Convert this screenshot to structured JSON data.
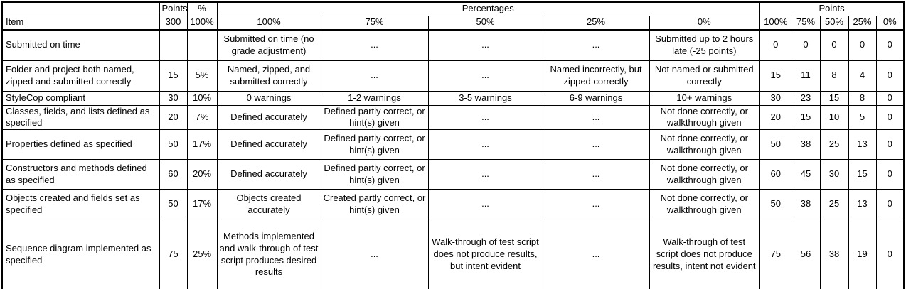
{
  "table": {
    "header_row1": {
      "corner": "",
      "points": "Points",
      "percent": "%",
      "percentages_group": "Percentages",
      "points_group": "Points"
    },
    "header_row2": {
      "item": "Item",
      "points_total": "300",
      "percent_total": "100%",
      "pct_levels": [
        "100%",
        "75%",
        "50%",
        "25%",
        "0%"
      ],
      "pts_levels": [
        "100%",
        "75%",
        "50%",
        "25%",
        "0%"
      ]
    },
    "rows": [
      {
        "item": "Submitted on time",
        "points": "",
        "pct": "",
        "p100": "Submitted on time (no grade adjustment)",
        "p75": "...",
        "p50": "...",
        "p25": "...",
        "p0": "Submitted up to 2 hours late (-25 points)",
        "pts100": "0",
        "pts75": "0",
        "pts50": "0",
        "pts25": "0",
        "pts0": "0"
      },
      {
        "item": "Folder and project both named, zipped and submitted correctly",
        "points": "15",
        "pct": "5%",
        "p100": "Named, zipped, and submitted correctly",
        "p75": "...",
        "p50": "...",
        "p25": "Named incorrectly, but zipped correctly",
        "p0": "Not named or submitted correctly",
        "pts100": "15",
        "pts75": "11",
        "pts50": "8",
        "pts25": "4",
        "pts0": "0"
      },
      {
        "item": "StyleCop compliant",
        "points": "30",
        "pct": "10%",
        "p100": "0 warnings",
        "p75": "1-2 warnings",
        "p50": "3-5 warnings",
        "p25": "6-9 warnings",
        "p0": "10+ warnings",
        "pts100": "30",
        "pts75": "23",
        "pts50": "15",
        "pts25": "8",
        "pts0": "0"
      },
      {
        "item": "Classes, fields, and lists defined as specified",
        "points": "20",
        "pct": "7%",
        "p100": "Defined accurately",
        "p75": "Defined partly correct, or hint(s) given",
        "p50": "...",
        "p25": "...",
        "p0": "Not done correctly, or walkthrough given",
        "pts100": "20",
        "pts75": "15",
        "pts50": "10",
        "pts25": "5",
        "pts0": "0"
      },
      {
        "item": "Properties defined as specified",
        "points": "50",
        "pct": "17%",
        "p100": "Defined accurately",
        "p75": "Defined partly correct, or hint(s) given",
        "p50": "...",
        "p25": "...",
        "p0": "Not done correctly, or walkthrough given",
        "pts100": "50",
        "pts75": "38",
        "pts50": "25",
        "pts25": "13",
        "pts0": "0"
      },
      {
        "item": "Constructors and methods defined as specified",
        "points": "60",
        "pct": "20%",
        "p100": "Defined accurately",
        "p75": "Defined partly correct, or hint(s) given",
        "p50": "...",
        "p25": "...",
        "p0": "Not done correctly, or walkthrough given",
        "pts100": "60",
        "pts75": "45",
        "pts50": "30",
        "pts25": "15",
        "pts0": "0"
      },
      {
        "item": "Objects created and fields set as specified",
        "points": "50",
        "pct": "17%",
        "p100": "Objects created accurately",
        "p75": "Created partly correct, or hint(s) given",
        "p50": "...",
        "p25": "...",
        "p0": "Not done correctly, or walkthrough given",
        "pts100": "50",
        "pts75": "38",
        "pts50": "25",
        "pts25": "13",
        "pts0": "0"
      },
      {
        "item": "Sequence diagram implemented as specified",
        "points": "75",
        "pct": "25%",
        "p100": "Methods implemented and walk-through of test script produces desired results",
        "p75": "...",
        "p50": "Walk-through of test script does not produce results, but intent evident",
        "p25": "...",
        "p0": "Walk-through of test script does not produce results, intent not evident",
        "pts100": "75",
        "pts75": "56",
        "pts50": "38",
        "pts25": "19",
        "pts0": "0"
      }
    ]
  }
}
